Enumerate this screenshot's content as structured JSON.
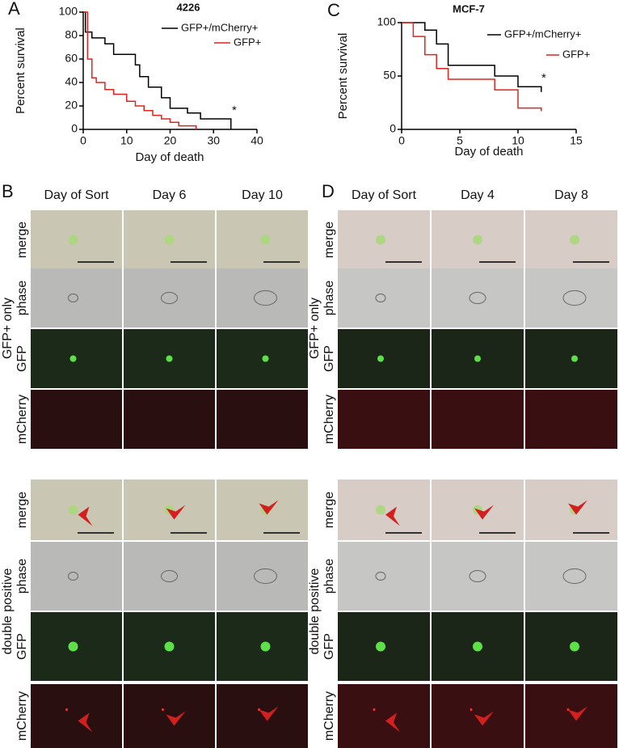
{
  "chart_data": [
    {
      "type": "line",
      "panel": "A",
      "title": "4226",
      "drawstyle": "steps-post",
      "xlabel": "Day of death",
      "ylabel": "Percent survival",
      "annotation": "*",
      "xlim": [
        0,
        40
      ],
      "xticks": [
        0,
        10,
        20,
        30,
        40
      ],
      "ylim": [
        0,
        100
      ],
      "yticks": [
        0,
        20,
        40,
        60,
        80,
        100
      ],
      "series": [
        {
          "name": "GFP+/mCherry+",
          "color": "#000000",
          "x": [
            0,
            0.5,
            2,
            5,
            7,
            12,
            13,
            15,
            18,
            20,
            24,
            27,
            34
          ],
          "values": [
            100,
            83,
            78,
            73,
            64,
            55,
            45,
            36,
            27,
            18,
            14,
            9,
            0
          ]
        },
        {
          "name": "GFP+",
          "color": "#e0231c",
          "x": [
            0,
            1,
            2,
            3,
            5,
            7,
            10,
            12,
            14,
            16,
            18,
            20,
            22,
            26
          ],
          "values": [
            100,
            60,
            44,
            40,
            34,
            30,
            24,
            20,
            16,
            12,
            9,
            6,
            3,
            0
          ]
        }
      ]
    },
    {
      "type": "line",
      "panel": "C",
      "title": "MCF-7",
      "drawstyle": "steps-post",
      "xlabel": "Day of death",
      "ylabel": "Percent survival",
      "annotation": "*",
      "xlim": [
        0,
        15
      ],
      "xticks": [
        0,
        5,
        10,
        15
      ],
      "ylim": [
        0,
        100
      ],
      "yticks": [
        0,
        50,
        100
      ],
      "series": [
        {
          "name": "GFP+/mCherry+",
          "color": "#000000",
          "x": [
            0,
            2,
            3,
            4,
            8,
            10,
            12
          ],
          "values": [
            100,
            93,
            80,
            60,
            50,
            40,
            35
          ]
        },
        {
          "name": "GFP+",
          "color": "#e0231c",
          "x": [
            0,
            1,
            2,
            3,
            4,
            8,
            10,
            12
          ],
          "values": [
            100,
            87,
            70,
            57,
            47,
            37,
            20,
            17
          ]
        }
      ]
    }
  ],
  "panels": [
    {
      "letter": "B",
      "columns": [
        "Day of Sort",
        "Day 6",
        "Day 10"
      ],
      "groups": [
        {
          "label": "GFP+ only",
          "rows": [
            "merge",
            "phase",
            "GFP",
            "mCherry"
          ]
        },
        {
          "label": "double positive",
          "rows": [
            "merge",
            "phase",
            "GFP",
            "mCherry"
          ]
        }
      ]
    },
    {
      "letter": "D",
      "columns": [
        "Day of Sort",
        "Day 4",
        "Day 8"
      ],
      "groups": [
        {
          "label": "GFP+ only",
          "rows": [
            "merge",
            "phase",
            "GFP",
            "mCherry"
          ]
        },
        {
          "label": "double positive",
          "rows": [
            "merge",
            "phase",
            "GFP",
            "mCherry"
          ]
        }
      ]
    }
  ]
}
